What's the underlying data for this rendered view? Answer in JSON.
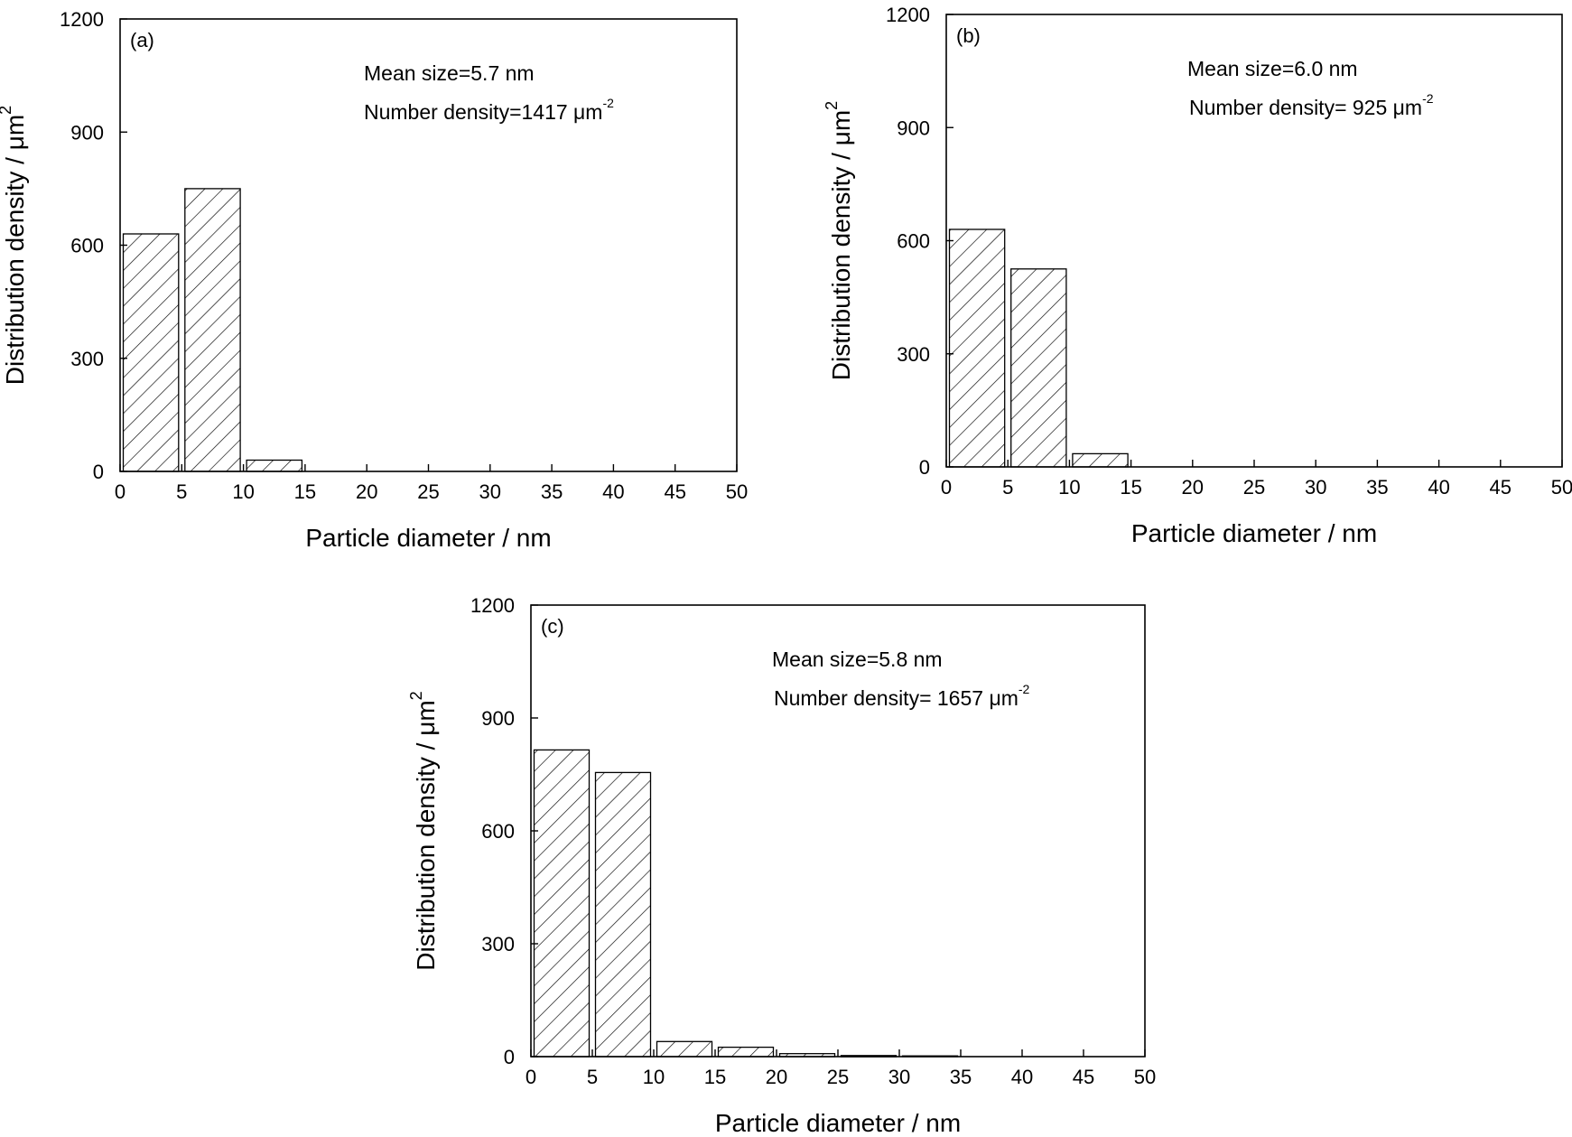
{
  "chart_data": [
    {
      "type": "bar",
      "panel_label": "(a)",
      "xlabel": "Particle diameter / nm",
      "ylabel": "Distribution density / μm",
      "ylabel_sup": "2",
      "xlim": [
        0,
        50
      ],
      "ylim": [
        0,
        1200
      ],
      "xticks": [
        "0",
        "5",
        "10",
        "15",
        "20",
        "25",
        "30",
        "35",
        "40",
        "45",
        "50"
      ],
      "yticks": [
        "0",
        "300",
        "600",
        "900",
        "1200"
      ],
      "bin_width": 5,
      "x": [
        2.5,
        7.5,
        12.5
      ],
      "values": [
        630,
        750,
        30
      ],
      "annotations": {
        "mean": "Mean size=5.7 nm",
        "density": "Number density=1417 μm",
        "density_sup": "-2"
      },
      "grid": false,
      "pattern": "diagonal-hatch"
    },
    {
      "type": "bar",
      "panel_label": "(b)",
      "xlabel": "Particle diameter / nm",
      "ylabel": "Distribution density / μm",
      "ylabel_sup": "2",
      "xlim": [
        0,
        50
      ],
      "ylim": [
        0,
        1200
      ],
      "xticks": [
        "0",
        "5",
        "10",
        "15",
        "20",
        "25",
        "30",
        "35",
        "40",
        "45",
        "50"
      ],
      "yticks": [
        "0",
        "300",
        "600",
        "900",
        "1200"
      ],
      "bin_width": 5,
      "x": [
        2.5,
        7.5,
        12.5
      ],
      "values": [
        630,
        525,
        35
      ],
      "annotations": {
        "mean": "Mean size=6.0 nm",
        "density": "Number density= 925 μm",
        "density_sup": "-2"
      },
      "grid": false,
      "pattern": "diagonal-hatch"
    },
    {
      "type": "bar",
      "panel_label": "(c)",
      "xlabel": "Particle diameter / nm",
      "ylabel": "Distribution density / μm",
      "ylabel_sup": "2",
      "xlim": [
        0,
        50
      ],
      "ylim": [
        0,
        1200
      ],
      "xticks": [
        "0",
        "5",
        "10",
        "15",
        "20",
        "25",
        "30",
        "35",
        "40",
        "45",
        "50"
      ],
      "yticks": [
        "0",
        "300",
        "600",
        "900",
        "1200"
      ],
      "bin_width": 5,
      "x": [
        2.5,
        7.5,
        12.5,
        17.5,
        22.5,
        27.5,
        32.5
      ],
      "values": [
        815,
        755,
        40,
        25,
        8,
        3,
        2
      ],
      "annotations": {
        "mean": "Mean size=5.8 nm",
        "density": "Number density= 1657 μm",
        "density_sup": "-2"
      },
      "grid": false,
      "pattern": "diagonal-hatch"
    }
  ]
}
